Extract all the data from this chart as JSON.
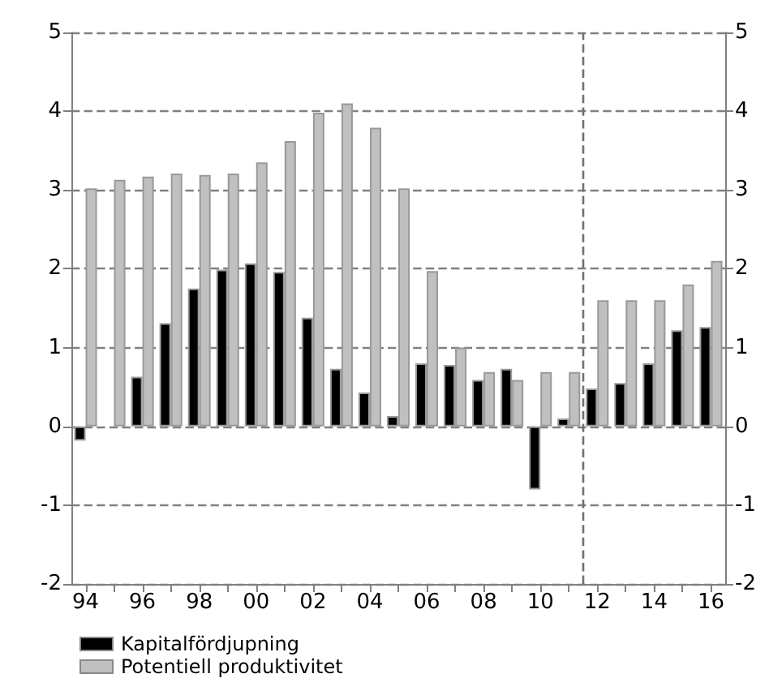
{
  "chart_data": {
    "type": "bar",
    "x": [
      1994,
      1995,
      1996,
      1997,
      1998,
      1999,
      2000,
      2001,
      2002,
      2003,
      2004,
      2005,
      2006,
      2007,
      2008,
      2009,
      2010,
      2011,
      2012,
      2013,
      2014,
      2015,
      2016
    ],
    "series": [
      {
        "name": "Kapitalfördjupning",
        "color": "#000000",
        "values": [
          -0.18,
          null,
          0.63,
          1.31,
          1.75,
          1.99,
          2.07,
          1.96,
          1.38,
          0.73,
          0.43,
          0.13,
          0.8,
          0.78,
          0.59,
          0.73,
          -0.8,
          0.1,
          0.48,
          0.55,
          0.8,
          1.22,
          1.26
        ]
      },
      {
        "name": "Potentiell produktivitet",
        "color": "#c0c0c0",
        "values": [
          3.02,
          3.13,
          3.17,
          3.21,
          3.19,
          3.21,
          3.35,
          3.62,
          3.98,
          4.1,
          3.79,
          3.02,
          1.97,
          1.0,
          0.69,
          0.59,
          0.69,
          0.69,
          1.6,
          1.6,
          1.6,
          1.8,
          2.1
        ]
      }
    ],
    "xlim": [
      1993.5,
      2016.5
    ],
    "xticks": [
      {
        "value": 1994,
        "label": "94"
      },
      {
        "value": 1995,
        "label": null
      },
      {
        "value": 1996,
        "label": "96"
      },
      {
        "value": 1997,
        "label": null
      },
      {
        "value": 1998,
        "label": "98"
      },
      {
        "value": 1999,
        "label": null
      },
      {
        "value": 2000,
        "label": "00"
      },
      {
        "value": 2001,
        "label": null
      },
      {
        "value": 2002,
        "label": "02"
      },
      {
        "value": 2003,
        "label": null
      },
      {
        "value": 2004,
        "label": "04"
      },
      {
        "value": 2005,
        "label": null
      },
      {
        "value": 2006,
        "label": "06"
      },
      {
        "value": 2007,
        "label": null
      },
      {
        "value": 2008,
        "label": "08"
      },
      {
        "value": 2009,
        "label": null
      },
      {
        "value": 2010,
        "label": "10"
      },
      {
        "value": 2011,
        "label": null
      },
      {
        "value": 2012,
        "label": "12"
      },
      {
        "value": 2013,
        "label": null
      },
      {
        "value": 2014,
        "label": "14"
      },
      {
        "value": 2015,
        "label": null
      },
      {
        "value": 2016,
        "label": "16"
      }
    ],
    "ylim": [
      -2,
      5
    ],
    "yticks": [
      -2,
      -1,
      0,
      1,
      2,
      3,
      4,
      5
    ],
    "y2lim": [
      -2,
      5
    ],
    "y2ticks": [
      -2,
      -1,
      0,
      1,
      2,
      3,
      4,
      5
    ],
    "ref_lines": [
      {
        "axis": "x",
        "value": 2011.5,
        "color": "#707070",
        "line_style": "dashed"
      }
    ],
    "grid": "y",
    "legend": "bottom left"
  }
}
